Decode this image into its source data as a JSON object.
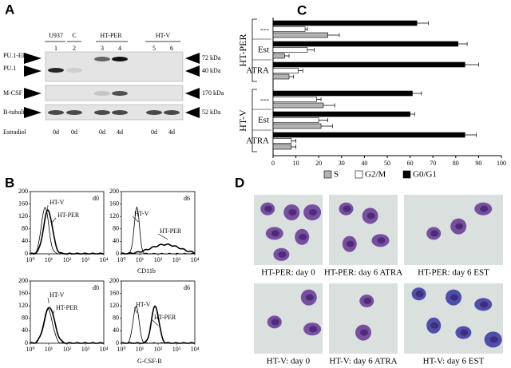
{
  "panels": {
    "A": {
      "letter": "A",
      "lane_groups": [
        "U937",
        "C",
        "HT-PER",
        "HT-V"
      ],
      "lanes": [
        "1",
        "2",
        "3",
        "4",
        "5",
        "6"
      ],
      "rows": [
        {
          "left": [
            "PU.1-ER",
            "PU.1"
          ],
          "right": [
            "72 kDa",
            "40 kDa"
          ]
        },
        {
          "left": [
            "M-CSF R"
          ],
          "right": [
            "170 kDa"
          ]
        },
        {
          "left": [
            "B-tubulin"
          ],
          "right": [
            "52 kDa"
          ]
        }
      ],
      "estradiol": {
        "label": "Estradiol",
        "values": [
          "0d",
          "0d",
          "0d",
          "4d",
          "0d",
          "4d"
        ]
      }
    },
    "B": {
      "letter": "B",
      "plots": [
        {
          "day": "d0",
          "yticks": [
            0,
            40,
            80,
            120,
            160,
            200
          ],
          "xticks": [
            "10⁰",
            "10¹",
            "10²",
            "10³",
            "10⁴"
          ],
          "annotations": [
            "HT-V",
            "HT-PER"
          ]
        },
        {
          "day": "d6",
          "yticks": [
            0,
            40,
            80,
            120,
            160,
            200
          ],
          "xticks": [
            "10⁰",
            "10¹",
            "10²",
            "10³",
            "10⁴"
          ],
          "annotations": [
            "HT-V",
            "HT-PER"
          ]
        },
        {
          "day": "d0",
          "yticks": [
            0,
            40,
            80,
            120,
            160,
            200
          ],
          "xticks": [
            "10⁰",
            "10¹",
            "10²",
            "10³",
            "10⁴"
          ],
          "annotations": [
            "HT-V",
            "HT-PER"
          ]
        },
        {
          "day": "d6",
          "yticks": [
            0,
            40,
            80,
            120,
            160,
            200
          ],
          "xticks": [
            "10⁰",
            "10¹",
            "10²",
            "10³",
            "10⁴"
          ],
          "annotations": [
            "HT-V",
            "HT-PER"
          ]
        }
      ],
      "xlabels": [
        "CD11b",
        "G-CSF-R"
      ]
    },
    "D": {
      "letter": "D",
      "captions": [
        "HT-PER: day 0",
        "HT-PER: day 6 ATRA",
        "HT-PER: day 6 EST",
        "HT-V: day 0",
        "HT-V: day 6 ATRA",
        "HT-V: day 6 EST"
      ]
    }
  },
  "chart_data": {
    "type": "bar",
    "orientation": "horizontal",
    "title": "C",
    "groups": [
      {
        "label": "HT-PER",
        "categories": [
          "---",
          "Est",
          "ATRA"
        ]
      },
      {
        "label": "HT-V",
        "categories": [
          "---",
          "Est",
          "ATRA"
        ]
      }
    ],
    "categories": [
      "---",
      "Est",
      "ATRA",
      "---",
      "Est",
      "ATRA"
    ],
    "series": [
      {
        "name": "S",
        "color": "#b3b3b3",
        "values": [
          24,
          5,
          7,
          22,
          21,
          8
        ],
        "errors": [
          5,
          2,
          2,
          5,
          5,
          2
        ]
      },
      {
        "name": "G2/M",
        "color": "#ffffff",
        "values": [
          14,
          15,
          11,
          19,
          20,
          8
        ],
        "errors": [
          1,
          3,
          2,
          2,
          4,
          2
        ]
      },
      {
        "name": "G0/G1",
        "color": "#000000",
        "values": [
          63,
          81,
          84,
          61,
          60,
          84
        ],
        "errors": [
          5,
          4,
          6,
          4,
          2,
          5
        ]
      }
    ],
    "xlim": [
      0,
      100
    ],
    "xticks": [
      0,
      10,
      20,
      30,
      40,
      50,
      60,
      70,
      80,
      90,
      100
    ],
    "legend": "bottom"
  }
}
